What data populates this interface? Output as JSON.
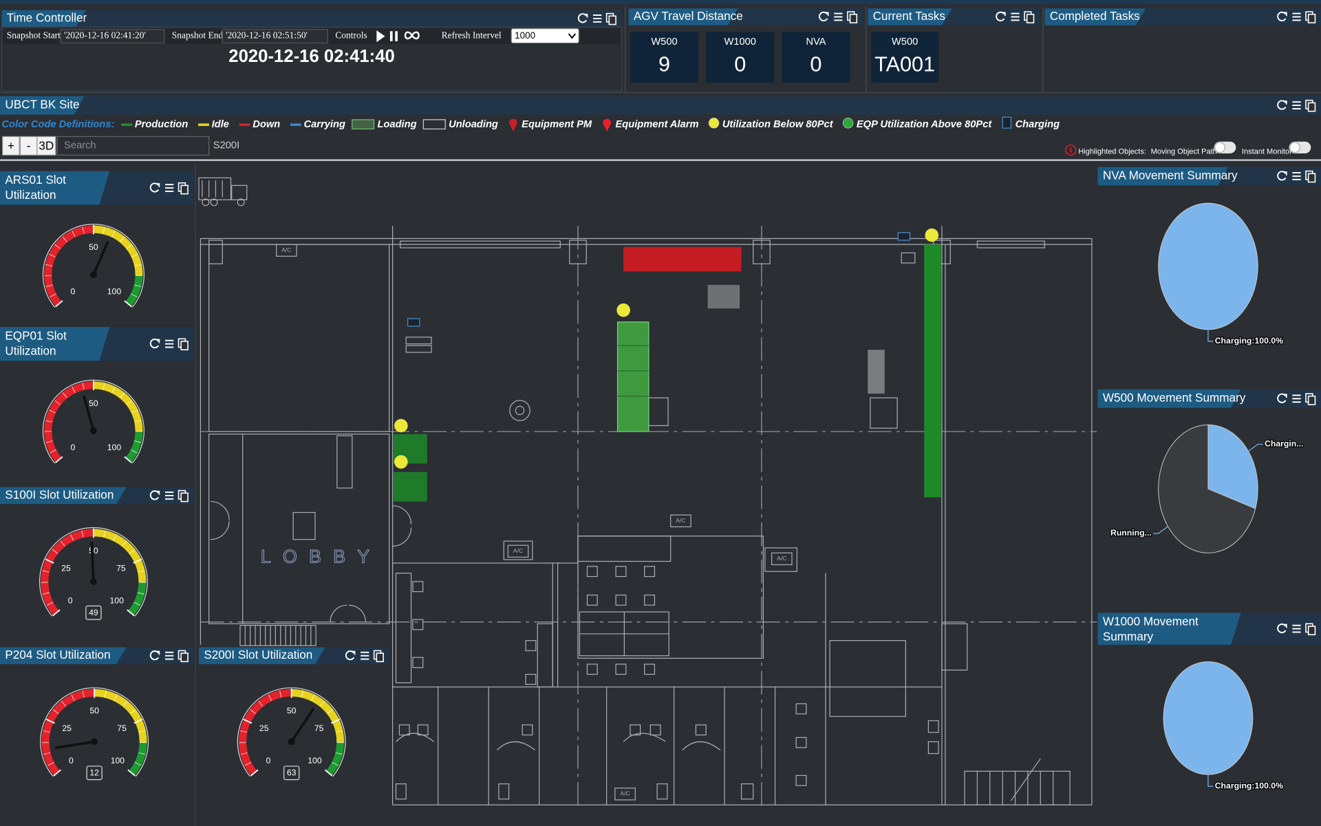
{
  "time_controller": {
    "title": "Time Controller",
    "snapshot_start_label": "Snapshot Start",
    "snapshot_start": "'2020-12-16 02:41:20'",
    "snapshot_end_label": "Snapshot End",
    "snapshot_end": "'2020-12-16 02:51:50'",
    "controls_label": "Controls",
    "refresh_label": "Refresh Intervel",
    "refresh_value": "1000",
    "current_time": "2020-12-16 02:41:40"
  },
  "agv_travel_distance": {
    "title": "AGV Travel Distance",
    "items": [
      {
        "name": "W500",
        "value": 9
      },
      {
        "name": "W1000",
        "value": 0
      },
      {
        "name": "NVA",
        "value": 0
      }
    ]
  },
  "current_tasks": {
    "title": "Current Tasks",
    "items": [
      {
        "agv": "W500",
        "task": "TA001"
      }
    ]
  },
  "completed_tasks": {
    "title": "Completed Tasks"
  },
  "site": {
    "title": "UBCT BK Site",
    "legend_title": "Color Code Definitions:",
    "legend": [
      {
        "label": "Production",
        "icon": "line",
        "color": "#1f8f2a"
      },
      {
        "label": "Idle",
        "icon": "line",
        "color": "#e6cf1c"
      },
      {
        "label": "Down",
        "icon": "line",
        "color": "#d8202a"
      },
      {
        "label": "Carrying",
        "icon": "line",
        "color": "#3b86d8"
      },
      {
        "label": "Loading",
        "icon": "box",
        "color": "#6fbf6f"
      },
      {
        "label": "Unloading",
        "icon": "box",
        "color": "#d0d0d0"
      },
      {
        "label": "Equipment PM",
        "icon": "pin",
        "color": "#c8202a"
      },
      {
        "label": "Equipment Alarm",
        "icon": "pin",
        "color": "#e8202a"
      },
      {
        "label": "Utilization Below 80Pct",
        "icon": "dot",
        "color": "#ece83a"
      },
      {
        "label": "EQP Utilization Above 80Pct",
        "icon": "dot",
        "color": "#2aa83a"
      },
      {
        "label": "Charging",
        "icon": "square",
        "color": "#1a2430"
      }
    ],
    "zoom_in": "+",
    "zoom_out": "-",
    "view_3d": "3D",
    "search_placeholder": "Search",
    "selected_object": "S200I",
    "highlighted_label": "Highlighted Objects:",
    "moving_path_label": "Moving Object Path",
    "instant_monitor_label": "Instant Monitor"
  },
  "floor_plan": {
    "lobby_label": "LOBBY",
    "ac_label": "A/C"
  },
  "gauge_bands": [
    {
      "to": 50,
      "color": "#e3222b"
    },
    {
      "to": 85,
      "color": "#e6d21f"
    },
    {
      "to": 100,
      "color": "#1d9a30"
    }
  ],
  "gauges": [
    {
      "title": "ARS01 Slot Utilization",
      "range": [
        0,
        100
      ],
      "ticks": [
        0,
        50,
        100
      ],
      "value": 59,
      "value_box": false
    },
    {
      "title": "EQP01 Slot Utilization",
      "range": [
        0,
        100
      ],
      "ticks": [
        0,
        50,
        100
      ],
      "value": 44,
      "value_box": false
    },
    {
      "title": "S100I Slot Utilization",
      "range": [
        0,
        100
      ],
      "ticks": [
        0,
        25,
        50,
        75,
        100
      ],
      "value": 49,
      "value_box": true
    },
    {
      "title": "P204 Slot Utilization",
      "range": [
        0,
        100
      ],
      "ticks": [
        0,
        25,
        50,
        75,
        100
      ],
      "value": 12,
      "value_box": true
    },
    {
      "title": "S200I Slot Utilization",
      "range": [
        0,
        100
      ],
      "ticks": [
        0,
        25,
        50,
        75,
        100
      ],
      "value": 63,
      "value_box": true
    }
  ],
  "pies": [
    {
      "title": "NVA Movement Summary",
      "slices": [
        {
          "label": "Charging:100.0%",
          "value": 100,
          "color": "#7cb5ec"
        }
      ]
    },
    {
      "title": "W500 Movement Summary",
      "slices": [
        {
          "label": "Chargin...",
          "value": 30,
          "color": "#7cb5ec"
        },
        {
          "label": "Running...",
          "value": 70,
          "color": "#3a3b3e"
        }
      ]
    },
    {
      "title": "W1000 Movement Summary",
      "slices": [
        {
          "label": "Charging:100.0%",
          "value": 100,
          "color": "#7cb5ec"
        }
      ]
    }
  ]
}
